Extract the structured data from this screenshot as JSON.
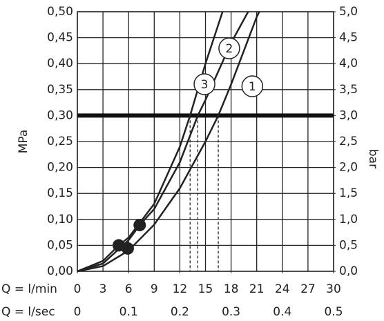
{
  "chart_data": {
    "type": "line",
    "ylabel": "MPa",
    "y2label": "bar",
    "xlabel": "Q = l/min",
    "x2label": "Q = l/sec",
    "xlim": [
      0,
      30
    ],
    "xticks": [
      0,
      3,
      6,
      9,
      12,
      15,
      18,
      21,
      24,
      27,
      30
    ],
    "x2lim": [
      0,
      0.5
    ],
    "x2ticks": [
      0,
      0.1,
      0.2,
      0.3,
      0.4,
      0.5
    ],
    "ylim": [
      0,
      0.5
    ],
    "yticks": [
      {
        "value": 0,
        "label": "0,00"
      },
      {
        "value": 0.05,
        "label": "0,05"
      },
      {
        "value": 0.1,
        "label": "0,10"
      },
      {
        "value": 0.15,
        "label": "0,15"
      },
      {
        "value": 0.2,
        "label": "0,20"
      },
      {
        "value": 0.25,
        "label": "0,25"
      },
      {
        "value": 0.3,
        "label": "0,30"
      },
      {
        "value": 0.35,
        "label": "0,35"
      },
      {
        "value": 0.4,
        "label": "0,40"
      },
      {
        "value": 0.45,
        "label": "0,45"
      },
      {
        "value": 0.5,
        "label": "0,50"
      }
    ],
    "y2lim": [
      0,
      5
    ],
    "y2ticks": [
      {
        "value": 0,
        "label": "0,0"
      },
      {
        "value": 0.5,
        "label": "0,5"
      },
      {
        "value": 1,
        "label": "1,0"
      },
      {
        "value": 1.5,
        "label": "1,5"
      },
      {
        "value": 2,
        "label": "2,0"
      },
      {
        "value": 2.5,
        "label": "2,5"
      },
      {
        "value": 3,
        "label": "3,0"
      },
      {
        "value": 3.5,
        "label": "3,5"
      },
      {
        "value": 4,
        "label": "4,0"
      },
      {
        "value": 4.5,
        "label": "4,5"
      },
      {
        "value": 5,
        "label": "5,0"
      }
    ],
    "grid": true,
    "color": "#222222",
    "series": [
      {
        "name": "1",
        "x": [
          0,
          3,
          6,
          9,
          12,
          15,
          16.5,
          18,
          21,
          21.3
        ],
        "values": [
          0,
          0.01,
          0.04,
          0.09,
          0.16,
          0.25,
          0.3,
          0.36,
          0.49,
          0.5
        ]
      },
      {
        "name": "2",
        "x": [
          0,
          3,
          6,
          7.3,
          9,
          12,
          14.1,
          15,
          18,
          20
        ],
        "values": [
          0,
          0.015,
          0.06,
          0.089,
          0.12,
          0.21,
          0.3,
          0.33,
          0.44,
          0.5
        ]
      },
      {
        "name": "3",
        "x": [
          0,
          3,
          4.85,
          6,
          9,
          12,
          13.2,
          15,
          17
        ],
        "values": [
          0,
          0.02,
          0.05,
          0.065,
          0.13,
          0.24,
          0.3,
          0.4,
          0.5
        ]
      }
    ],
    "hline": 0.3,
    "reference_x": [
      13.2,
      14.1,
      16.5
    ],
    "points": {
      "x": [
        4.85,
        5.9,
        7.3
      ],
      "values": [
        0.05,
        0.044,
        0.089
      ]
    }
  }
}
